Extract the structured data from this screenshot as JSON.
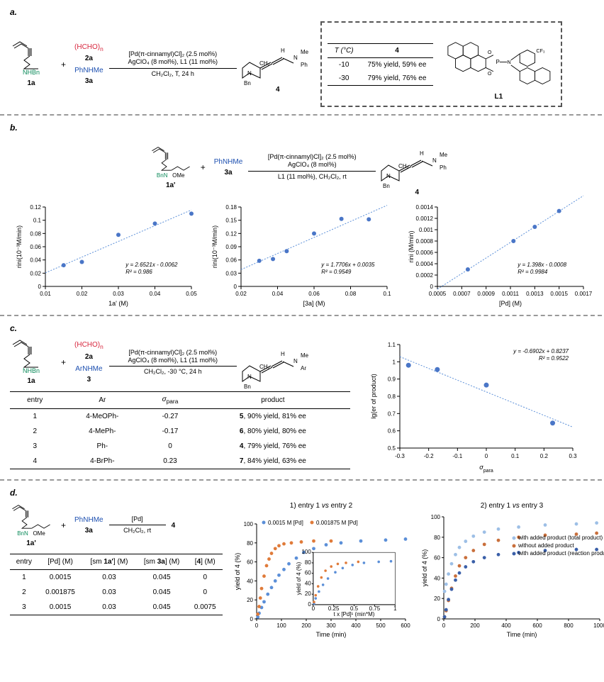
{
  "panelA": {
    "label": "a.",
    "substrate1": {
      "label_top": "NHBn",
      "num": "1a"
    },
    "formaldehyde": {
      "formula": "(HCHO)",
      "sub": "n",
      "num": "2a"
    },
    "amine": {
      "text": "PhNHMe",
      "num": "3a"
    },
    "plus": "+",
    "conditions_over": "[Pd(π-cinnamyl)Cl]₂ (2.5 mol%)\nAgClO₄ (8 mol%), L1 (11 mol%)",
    "conditions_under": "CH₂Cl₂, T, 24 h",
    "product": {
      "ch2": "CH₂",
      "N": "N",
      "Me": "Me",
      "Ph": "Ph",
      "H": "H",
      "Bn": "Bn",
      "num": "4"
    },
    "table": {
      "columns": [
        "T (°C)",
        "4"
      ],
      "rows": [
        [
          "-10",
          "75% yield, 59% ee"
        ],
        [
          "-30",
          "79% yield, 76% ee"
        ]
      ]
    },
    "ligand_label": "L1",
    "ligand_groups": {
      "cf3": "CF₃",
      "O": "O",
      "P": "P",
      "N": "N"
    }
  },
  "panelB": {
    "label": "b.",
    "substrateOMe": {
      "groups": "BnN    OMe",
      "num": "1a'"
    },
    "amine": {
      "text": "PhNHMe",
      "num": "3a"
    },
    "plus": "+",
    "conditions_over": "[Pd(π-cinnamyl)Cl]₂ (2.5 mol%)\nAgClO₄ (8 mol%)",
    "conditions_under": "L1 (11 mol%), CH₂Cl₂, rt",
    "product_num": "4",
    "charts": [
      {
        "xlabel": "1a' (M)",
        "ylabel": "rini(10⁻³M/min)",
        "xlim": [
          0.01,
          0.05
        ],
        "ylim": [
          0,
          0.12
        ],
        "xticks": [
          0.01,
          0.02,
          0.03,
          0.04,
          0.05
        ],
        "yticks": [
          0,
          0.02,
          0.04,
          0.06,
          0.08,
          0.1,
          0.12
        ],
        "pts": [
          [
            0.015,
            0.032
          ],
          [
            0.02,
            0.037
          ],
          [
            0.03,
            0.078
          ],
          [
            0.04,
            0.095
          ],
          [
            0.05,
            0.11
          ]
        ],
        "eqn": "y = 2.6521x - 0.0062",
        "r2": "R² = 0.986"
      },
      {
        "xlabel": "[3a] (M)",
        "ylabel": "rini(10⁻³M/min)",
        "xlim": [
          0.02,
          0.1
        ],
        "ylim": [
          0,
          0.18
        ],
        "xticks": [
          0.02,
          0.04,
          0.06,
          0.08,
          0.1
        ],
        "yticks": [
          0,
          0.03,
          0.06,
          0.09,
          0.12,
          0.15,
          0.18
        ],
        "pts": [
          [
            0.03,
            0.058
          ],
          [
            0.0375,
            0.062
          ],
          [
            0.045,
            0.08
          ],
          [
            0.06,
            0.12
          ],
          [
            0.075,
            0.153
          ],
          [
            0.09,
            0.152
          ]
        ],
        "eqn": "y = 1.7706x + 0.0035",
        "r2": "R² = 0.9549"
      },
      {
        "xlabel": "[Pd] (M)",
        "ylabel": "rini (M/min)",
        "xlim": [
          0.0005,
          0.0017
        ],
        "ylim": [
          0,
          0.0014
        ],
        "xticks": [
          0.0005,
          0.0007,
          0.0009,
          0.0011,
          0.0013,
          0.0015,
          0.0017
        ],
        "yticks": [
          0,
          0.0002,
          0.0004,
          0.0006,
          0.0008,
          0.001,
          0.0012,
          0.0014
        ],
        "pts": [
          [
            0.00075,
            0.0003
          ],
          [
            0.001125,
            0.0008
          ],
          [
            0.0013,
            0.00105
          ],
          [
            0.0015,
            0.00133
          ]
        ],
        "eqn": "y = 1.398x - 0.0008",
        "r2": "R² = 0.9984"
      }
    ]
  },
  "panelC": {
    "label": "c.",
    "substrate1": {
      "label_top": "NHBn",
      "num": "1a"
    },
    "formaldehyde": {
      "formula": "(HCHO)",
      "sub": "n",
      "num": "2a"
    },
    "amine": {
      "text": "ArNHMe",
      "num": "3"
    },
    "plus": "+",
    "conditions_over": "[Pd(π-cinnamyl)Cl]₂ (2.5 mol%)\nAgClO₄ (8 mol%), L1 (11 mol%)",
    "conditions_under": "CH₂Cl₂, -30 °C, 24 h",
    "product_ar": "Ar",
    "table": {
      "columns": [
        "entry",
        "Ar",
        "σ_para",
        "product"
      ],
      "rows": [
        [
          "1",
          "4-MeOPh-",
          "-0.27",
          "5, 90% yield, 81% ee"
        ],
        [
          "2",
          "4-MePh-",
          "-0.17",
          "6, 80% yield, 80% ee"
        ],
        [
          "3",
          "Ph-",
          "0",
          "4, 79% yield, 76% ee"
        ],
        [
          "4",
          "4-BrPh-",
          "0.23",
          "7, 84% yield, 63% ee"
        ]
      ]
    },
    "hammett": {
      "xlabel": "σ_para",
      "ylabel": "lg(er of product)",
      "xlim": [
        -0.3,
        0.3
      ],
      "ylim": [
        0.5,
        1.1
      ],
      "xticks": [
        -0.3,
        -0.2,
        -0.1,
        0,
        0.1,
        0.2,
        0.3
      ],
      "yticks": [
        0.5,
        0.6,
        0.7,
        0.8,
        0.9,
        1.0,
        1.1
      ],
      "pts": [
        [
          -0.27,
          0.98
        ],
        [
          -0.17,
          0.955
        ],
        [
          0.0,
          0.865
        ],
        [
          0.23,
          0.645
        ]
      ],
      "eqn": "y = -0.6902x + 0.8237",
      "r2": "R² = 0.9522"
    }
  },
  "panelD": {
    "label": "d.",
    "substrateOMe": {
      "groups": "BnN    OMe",
      "num": "1a'"
    },
    "amine": {
      "text": "PhNHMe",
      "num": "3a"
    },
    "plus": "+",
    "conditions_over": "[Pd]",
    "conditions_under": "CH₂Cl₂, rt",
    "product_num": "4",
    "table": {
      "columns": [
        "entry",
        "[Pd] (M)",
        "[sm 1a'] (M)",
        "[sm 3a] (M)",
        "[4] (M)"
      ],
      "rows": [
        [
          "1",
          "0.0015",
          "0.03",
          "0.045",
          "0"
        ],
        [
          "2",
          "0.001875",
          "0.03",
          "0.045",
          "0"
        ],
        [
          "3",
          "0.0015",
          "0.03",
          "0.045",
          "0.0075"
        ]
      ]
    },
    "kin1": {
      "title": "1) entry 1 vs entry 2",
      "xlabel": "Time (min)",
      "ylabel": "yield of 4 (%)",
      "xlim": [
        0,
        600
      ],
      "ylim": [
        0,
        100
      ],
      "xticks": [
        0,
        100,
        200,
        300,
        400,
        500,
        600
      ],
      "yticks": [
        0,
        20,
        40,
        60,
        80,
        100
      ],
      "legend": [
        {
          "label": "0.0015 M [Pd]",
          "color": "#5b8fd8"
        },
        {
          "label": "0.001875 M [Pd]",
          "color": "#e07b3a"
        }
      ],
      "series": [
        {
          "color": "#5b8fd8",
          "pts": [
            [
              5,
              2
            ],
            [
              10,
              6
            ],
            [
              20,
              12
            ],
            [
              30,
              18
            ],
            [
              45,
              26
            ],
            [
              60,
              33
            ],
            [
              75,
              40
            ],
            [
              90,
              46
            ],
            [
              110,
              52
            ],
            [
              130,
              58
            ],
            [
              160,
              64
            ],
            [
              190,
              70
            ],
            [
              230,
              74
            ],
            [
              280,
              78
            ],
            [
              340,
              80
            ],
            [
              420,
              82
            ],
            [
              520,
              83
            ],
            [
              600,
              84
            ]
          ]
        },
        {
          "color": "#e07b3a",
          "pts": [
            [
              5,
              5
            ],
            [
              10,
              13
            ],
            [
              15,
              22
            ],
            [
              20,
              32
            ],
            [
              30,
              45
            ],
            [
              40,
              56
            ],
            [
              50,
              63
            ],
            [
              60,
              69
            ],
            [
              75,
              74
            ],
            [
              90,
              77
            ],
            [
              110,
              79
            ],
            [
              140,
              80
            ],
            [
              180,
              81
            ],
            [
              230,
              82
            ],
            [
              300,
              82
            ]
          ]
        }
      ],
      "inset": {
        "xlabel": "t x [Pd]¹ (min*M)",
        "ylabel": "yield of 4 (%)",
        "xlim": [
          0,
          1
        ],
        "ylim": [
          0,
          100
        ],
        "xticks": [
          0,
          0.25,
          0.5,
          0.75,
          1
        ],
        "yticks": [
          0,
          20,
          40,
          60,
          80,
          100
        ],
        "series": [
          {
            "color": "#5b8fd8",
            "pts": [
              [
                0.01,
                2
              ],
              [
                0.03,
                12
              ],
              [
                0.07,
                25
              ],
              [
                0.12,
                38
              ],
              [
                0.18,
                50
              ],
              [
                0.27,
                62
              ],
              [
                0.36,
                70
              ],
              [
                0.48,
                76
              ],
              [
                0.62,
                80
              ],
              [
                0.8,
                82
              ],
              [
                0.95,
                83
              ]
            ]
          },
          {
            "color": "#e07b3a",
            "pts": [
              [
                0.01,
                5
              ],
              [
                0.03,
                18
              ],
              [
                0.06,
                35
              ],
              [
                0.1,
                52
              ],
              [
                0.15,
                65
              ],
              [
                0.22,
                73
              ],
              [
                0.3,
                78
              ],
              [
                0.4,
                80
              ],
              [
                0.55,
                82
              ]
            ]
          }
        ]
      }
    },
    "kin2": {
      "title": "2) entry 1 vs entry 3",
      "xlabel": "Time (min)",
      "ylabel": "yield of 4 (%)",
      "xlim": [
        0,
        1000
      ],
      "ylim": [
        0,
        100
      ],
      "xticks": [
        0,
        200,
        400,
        600,
        800,
        1000
      ],
      "yticks": [
        0,
        20,
        40,
        60,
        80,
        100
      ],
      "legend": [
        {
          "label": "with added product (total product)",
          "color": "#9dbfe6"
        },
        {
          "label": "without added product",
          "color": "#c96f3b"
        },
        {
          "label": "with added product (reaction product)",
          "color": "#3a5fa8"
        }
      ],
      "series": [
        {
          "color": "#9dbfe6",
          "pts": [
            [
              5,
              27
            ],
            [
              15,
              34
            ],
            [
              30,
              44
            ],
            [
              50,
              54
            ],
            [
              75,
              63
            ],
            [
              100,
              70
            ],
            [
              140,
              76
            ],
            [
              190,
              81
            ],
            [
              260,
              85
            ],
            [
              350,
              88
            ],
            [
              480,
              90
            ],
            [
              650,
              92
            ],
            [
              850,
              93
            ],
            [
              980,
              94
            ]
          ]
        },
        {
          "color": "#c96f3b",
          "pts": [
            [
              5,
              2
            ],
            [
              15,
              8
            ],
            [
              30,
              18
            ],
            [
              50,
              30
            ],
            [
              75,
              42
            ],
            [
              100,
              52
            ],
            [
              140,
              60
            ],
            [
              190,
              67
            ],
            [
              260,
              73
            ],
            [
              350,
              77
            ],
            [
              480,
              80
            ],
            [
              650,
              82
            ],
            [
              850,
              83
            ],
            [
              980,
              84
            ]
          ]
        },
        {
          "color": "#3a5fa8",
          "pts": [
            [
              5,
              2
            ],
            [
              15,
              9
            ],
            [
              30,
              19
            ],
            [
              50,
              29
            ],
            [
              75,
              38
            ],
            [
              100,
              45
            ],
            [
              140,
              51
            ],
            [
              190,
              56
            ],
            [
              260,
              60
            ],
            [
              350,
              63
            ],
            [
              480,
              65
            ],
            [
              650,
              67
            ],
            [
              850,
              68
            ],
            [
              980,
              68
            ]
          ]
        }
      ]
    }
  },
  "colors": {
    "point": "#4a76c7",
    "fit": "#5b8fd8"
  }
}
